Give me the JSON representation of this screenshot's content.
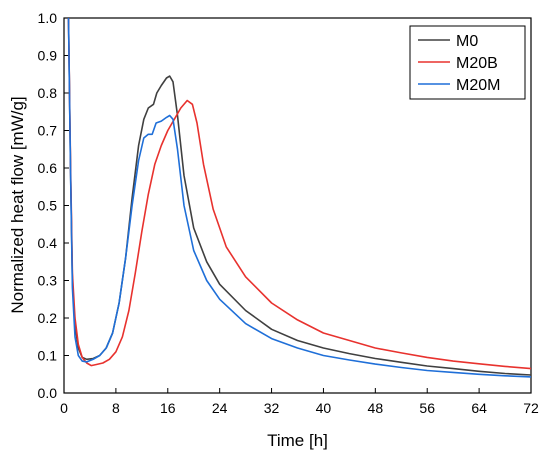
{
  "chart_data": {
    "type": "line",
    "title": "",
    "xlabel": "Time [h]",
    "ylabel": "Normalized heat flow [mW/g]",
    "xlim": [
      0,
      72
    ],
    "ylim": [
      0,
      1.0
    ],
    "xticks": [
      0,
      8,
      16,
      24,
      32,
      40,
      48,
      56,
      64,
      72
    ],
    "yticks": [
      0.0,
      0.1,
      0.2,
      0.3,
      0.4,
      0.5,
      0.6,
      0.7,
      0.8,
      0.9,
      1.0
    ],
    "xtick_labels": [
      "0",
      "8",
      "16",
      "24",
      "32",
      "40",
      "48",
      "56",
      "64",
      "72"
    ],
    "ytick_labels": [
      "0.0",
      "0.1",
      "0.2",
      "0.3",
      "0.4",
      "0.5",
      "0.6",
      "0.7",
      "0.8",
      "0.9",
      "1.0"
    ],
    "grid": false,
    "legend_position": "top-right",
    "series": [
      {
        "name": "M0",
        "color": "#404040",
        "points": [
          [
            0.7,
            1.0
          ],
          [
            1.0,
            0.6
          ],
          [
            1.3,
            0.3
          ],
          [
            1.7,
            0.18
          ],
          [
            2.2,
            0.12
          ],
          [
            2.8,
            0.095
          ],
          [
            3.5,
            0.09
          ],
          [
            4.5,
            0.092
          ],
          [
            5.5,
            0.1
          ],
          [
            6.5,
            0.12
          ],
          [
            7.5,
            0.16
          ],
          [
            8.5,
            0.24
          ],
          [
            9.5,
            0.36
          ],
          [
            10.5,
            0.52
          ],
          [
            11.5,
            0.66
          ],
          [
            12.3,
            0.73
          ],
          [
            13.0,
            0.76
          ],
          [
            13.8,
            0.77
          ],
          [
            14.3,
            0.8
          ],
          [
            15.0,
            0.82
          ],
          [
            15.8,
            0.84
          ],
          [
            16.3,
            0.845
          ],
          [
            16.8,
            0.83
          ],
          [
            17.5,
            0.74
          ],
          [
            18.5,
            0.58
          ],
          [
            20,
            0.44
          ],
          [
            22,
            0.35
          ],
          [
            24,
            0.29
          ],
          [
            28,
            0.22
          ],
          [
            32,
            0.17
          ],
          [
            36,
            0.14
          ],
          [
            40,
            0.12
          ],
          [
            44,
            0.105
          ],
          [
            48,
            0.092
          ],
          [
            52,
            0.082
          ],
          [
            56,
            0.072
          ],
          [
            60,
            0.065
          ],
          [
            64,
            0.058
          ],
          [
            68,
            0.052
          ],
          [
            72,
            0.048
          ]
        ]
      },
      {
        "name": "M20B",
        "color": "#e8322e",
        "points": [
          [
            0.7,
            1.0
          ],
          [
            1.0,
            0.62
          ],
          [
            1.3,
            0.32
          ],
          [
            1.7,
            0.2
          ],
          [
            2.2,
            0.13
          ],
          [
            2.8,
            0.095
          ],
          [
            3.5,
            0.08
          ],
          [
            4.2,
            0.073
          ],
          [
            5.0,
            0.076
          ],
          [
            6.0,
            0.08
          ],
          [
            7.0,
            0.09
          ],
          [
            8.0,
            0.11
          ],
          [
            9.0,
            0.15
          ],
          [
            10.0,
            0.22
          ],
          [
            11.0,
            0.32
          ],
          [
            12.0,
            0.43
          ],
          [
            13.0,
            0.53
          ],
          [
            14.0,
            0.61
          ],
          [
            15.0,
            0.66
          ],
          [
            16.0,
            0.7
          ],
          [
            17.0,
            0.73
          ],
          [
            18.0,
            0.76
          ],
          [
            19.0,
            0.78
          ],
          [
            19.8,
            0.77
          ],
          [
            20.5,
            0.72
          ],
          [
            21.5,
            0.61
          ],
          [
            23,
            0.49
          ],
          [
            25,
            0.39
          ],
          [
            28,
            0.31
          ],
          [
            32,
            0.24
          ],
          [
            36,
            0.195
          ],
          [
            40,
            0.16
          ],
          [
            44,
            0.14
          ],
          [
            48,
            0.12
          ],
          [
            52,
            0.107
          ],
          [
            56,
            0.095
          ],
          [
            60,
            0.085
          ],
          [
            64,
            0.078
          ],
          [
            68,
            0.071
          ],
          [
            72,
            0.065
          ]
        ]
      },
      {
        "name": "M20M",
        "color": "#1f6fd8",
        "points": [
          [
            0.7,
            1.0
          ],
          [
            1.0,
            0.6
          ],
          [
            1.3,
            0.28
          ],
          [
            1.7,
            0.15
          ],
          [
            2.2,
            0.1
          ],
          [
            2.8,
            0.085
          ],
          [
            3.5,
            0.083
          ],
          [
            4.5,
            0.09
          ],
          [
            5.5,
            0.1
          ],
          [
            6.5,
            0.12
          ],
          [
            7.5,
            0.16
          ],
          [
            8.5,
            0.24
          ],
          [
            9.5,
            0.36
          ],
          [
            10.5,
            0.5
          ],
          [
            11.5,
            0.62
          ],
          [
            12.3,
            0.68
          ],
          [
            13.0,
            0.69
          ],
          [
            13.6,
            0.69
          ],
          [
            14.2,
            0.72
          ],
          [
            15.0,
            0.725
          ],
          [
            15.8,
            0.735
          ],
          [
            16.3,
            0.74
          ],
          [
            16.8,
            0.73
          ],
          [
            17.5,
            0.65
          ],
          [
            18.5,
            0.5
          ],
          [
            20,
            0.38
          ],
          [
            22,
            0.3
          ],
          [
            24,
            0.25
          ],
          [
            28,
            0.185
          ],
          [
            32,
            0.145
          ],
          [
            36,
            0.12
          ],
          [
            40,
            0.1
          ],
          [
            44,
            0.088
          ],
          [
            48,
            0.077
          ],
          [
            52,
            0.068
          ],
          [
            56,
            0.06
          ],
          [
            60,
            0.055
          ],
          [
            64,
            0.05
          ],
          [
            68,
            0.046
          ],
          [
            72,
            0.043
          ]
        ]
      }
    ]
  }
}
